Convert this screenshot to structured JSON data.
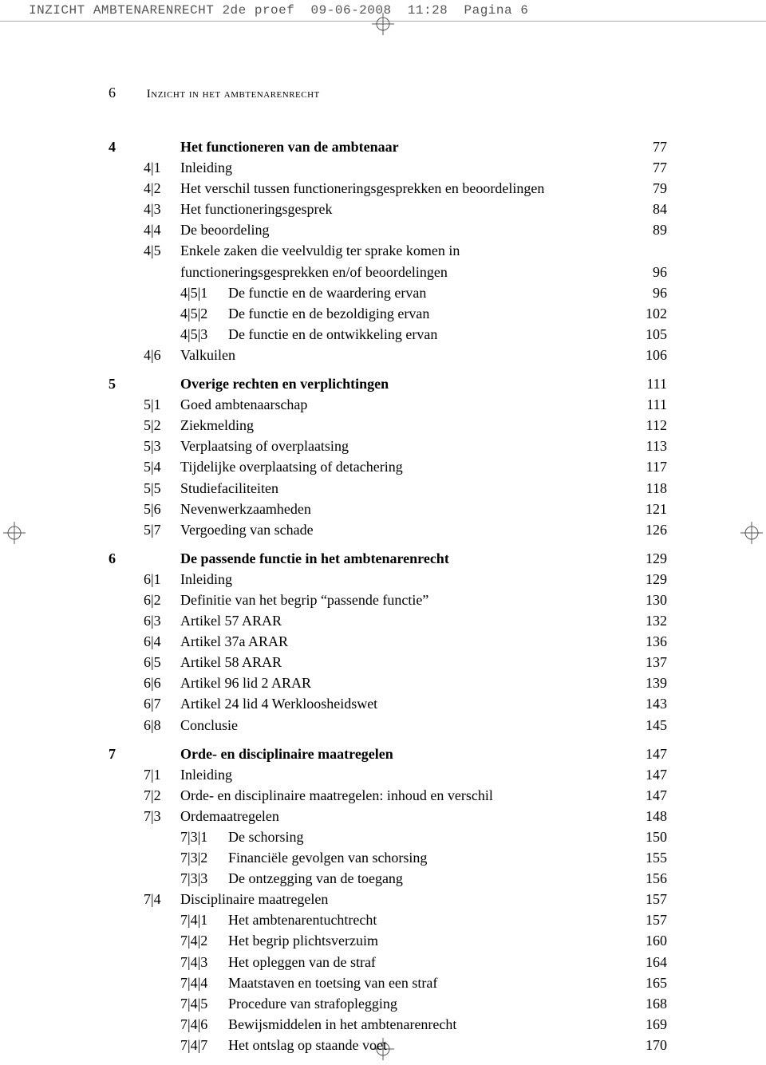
{
  "cropHeader": "INZICHT AMBTENARENRECHT 2de proef  09-06-2008  11:28  Pagina 6",
  "runningHead": {
    "pageNumber": "6",
    "text": "Inzicht in het ambtenarenrecht"
  },
  "chapters": [
    {
      "num": "4",
      "title": "Het functioneren van de ambtenaar",
      "page": "77",
      "sections": [
        {
          "num": "4|1",
          "title": "Inleiding",
          "page": "77"
        },
        {
          "num": "4|2",
          "title": "Het verschil tussen functioneringsgesprekken en beoordelingen",
          "page": "79"
        },
        {
          "num": "4|3",
          "title": "Het functioneringsgesprek",
          "page": "84"
        },
        {
          "num": "4|4",
          "title": "De beoordeling",
          "page": "89"
        },
        {
          "num": "4|5",
          "title": "Enkele zaken die veelvuldig ter sprake komen in",
          "page": "",
          "cont": "functioneringsgesprekken en/of  beoordelingen",
          "contPage": "96",
          "subs": [
            {
              "num": "4|5|1",
              "title": "De functie en de waardering ervan",
              "page": "96"
            },
            {
              "num": "4|5|2",
              "title": "De functie en de bezoldiging ervan",
              "page": "102"
            },
            {
              "num": "4|5|3",
              "title": "De functie en de ontwikkeling ervan",
              "page": "105"
            }
          ]
        },
        {
          "num": "4|6",
          "title": "Valkuilen",
          "page": "106"
        }
      ]
    },
    {
      "num": "5",
      "title": "Overige rechten en verplichtingen",
      "page": "111",
      "sections": [
        {
          "num": "5|1",
          "title": "Goed ambtenaarschap",
          "page": "111"
        },
        {
          "num": "5|2",
          "title": "Ziekmelding",
          "page": "112"
        },
        {
          "num": "5|3",
          "title": "Verplaatsing of overplaatsing",
          "page": "113"
        },
        {
          "num": "5|4",
          "title": "Tijdelijke overplaatsing of detachering",
          "page": "117"
        },
        {
          "num": "5|5",
          "title": "Studiefaciliteiten",
          "page": "118"
        },
        {
          "num": "5|6",
          "title": "Nevenwerkzaamheden",
          "page": "121"
        },
        {
          "num": "5|7",
          "title": "Vergoeding van schade",
          "page": "126"
        }
      ]
    },
    {
      "num": "6",
      "title": "De passende functie in het ambtenarenrecht",
      "page": "129",
      "sections": [
        {
          "num": "6|1",
          "title": "Inleiding",
          "page": "129"
        },
        {
          "num": "6|2",
          "title": "Definitie van het begrip “passende functie”",
          "page": "130"
        },
        {
          "num": "6|3",
          "title": "Artikel 57 ARAR",
          "page": "132"
        },
        {
          "num": "6|4",
          "title": "Artikel 37a ARAR",
          "page": "136"
        },
        {
          "num": "6|5",
          "title": "Artikel 58 ARAR",
          "page": "137"
        },
        {
          "num": "6|6",
          "title": "Artikel 96 lid 2 ARAR",
          "page": "139"
        },
        {
          "num": "6|7",
          "title": "Artikel 24 lid 4 Werkloosheidswet",
          "page": "143"
        },
        {
          "num": "6|8",
          "title": "Conclusie",
          "page": "145"
        }
      ]
    },
    {
      "num": "7",
      "title": "Orde- en disciplinaire maatregelen",
      "page": "147",
      "sections": [
        {
          "num": "7|1",
          "title": "Inleiding",
          "page": "147"
        },
        {
          "num": "7|2",
          "title": "Orde- en disciplinaire maatregelen: inhoud en verschil",
          "page": "147"
        },
        {
          "num": "7|3",
          "title": "Ordemaatregelen",
          "page": "148",
          "subs": [
            {
              "num": "7|3|1",
              "title": "De schorsing",
              "page": "150"
            },
            {
              "num": "7|3|2",
              "title": "Financiële gevolgen van schorsing",
              "page": "155"
            },
            {
              "num": "7|3|3",
              "title": "De ontzegging van de toegang",
              "page": "156"
            }
          ]
        },
        {
          "num": "7|4",
          "title": "Disciplinaire maatregelen",
          "page": "157",
          "subs": [
            {
              "num": "7|4|1",
              "title": "Het ambtenarentuchtrecht",
              "page": "157"
            },
            {
              "num": "7|4|2",
              "title": "Het begrip plichtsverzuim",
              "page": "160"
            },
            {
              "num": "7|4|3",
              "title": "Het opleggen van de straf",
              "page": "164"
            },
            {
              "num": "7|4|4",
              "title": "Maatstaven en toetsing van een straf",
              "page": "165"
            },
            {
              "num": "7|4|5",
              "title": "Procedure van strafoplegging",
              "page": "168"
            },
            {
              "num": "7|4|6",
              "title": "Bewijsmiddelen in het ambtenarenrecht",
              "page": "169"
            },
            {
              "num": "7|4|7",
              "title": "Het ontslag op staande voet",
              "page": "170"
            }
          ]
        }
      ]
    }
  ]
}
